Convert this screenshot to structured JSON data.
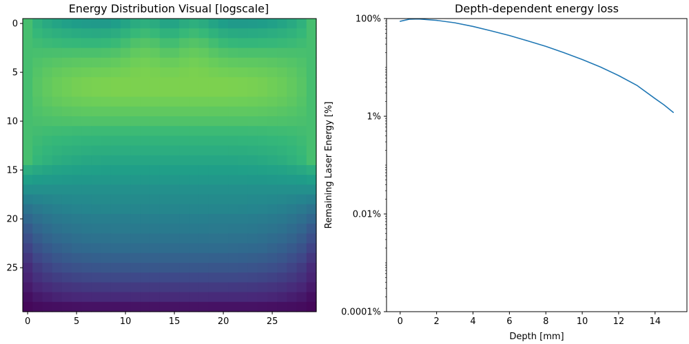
{
  "chart_data": [
    {
      "type": "heatmap",
      "title": "Energy Distribution Visual [logscale]",
      "colormap": "viridis",
      "rows": 30,
      "cols": 30,
      "xlim": [
        -0.5,
        29.5
      ],
      "ylim": [
        29.5,
        -0.5
      ],
      "xticks": [
        0,
        5,
        10,
        15,
        20,
        25
      ],
      "yticks": [
        0,
        5,
        10,
        15,
        20,
        25
      ],
      "value_range": [
        0,
        1
      ],
      "model": {
        "center_rows": [
          0.53,
          0.6,
          0.66,
          0.71,
          0.75,
          0.78,
          0.8,
          0.8,
          0.78,
          0.75,
          0.72,
          0.68,
          0.65,
          0.62,
          0.59,
          0.56,
          0.53,
          0.5,
          0.48,
          0.46,
          0.43,
          0.41,
          0.38,
          0.35,
          0.31,
          0.27,
          0.22,
          0.17,
          0.12,
          0.05
        ],
        "edge_rows": [
          0.7,
          0.7,
          0.7,
          0.7,
          0.7,
          0.7,
          0.7,
          0.7,
          0.7,
          0.7,
          0.7,
          0.7,
          0.7,
          0.7,
          0.7,
          0.62,
          0.56,
          0.5,
          0.44,
          0.38,
          0.33,
          0.28,
          0.24,
          0.2,
          0.16,
          0.12,
          0.1,
          0.07,
          0.04,
          0.02
        ],
        "column_profile": [
          0.0,
          0.35,
          0.55,
          0.7,
          0.8,
          0.88,
          0.93,
          0.96,
          0.98,
          0.99,
          0.99,
          1.0,
          1.0,
          1.0,
          1.0,
          1.0,
          1.0,
          1.0,
          1.0,
          0.99,
          0.99,
          0.98,
          0.96,
          0.93,
          0.88,
          0.8,
          0.7,
          0.55,
          0.35,
          0.0
        ],
        "top_bright_cols": [
          12,
          17
        ]
      }
    },
    {
      "type": "line",
      "title": "Depth-dependent energy loss",
      "xlabel": "Depth [mm]",
      "ylabel": "Remaining Laser Energy [%]",
      "xlim": [
        -0.75,
        15.75
      ],
      "ylim": [
        0.0001,
        100
      ],
      "yscale": "log",
      "xticks": [
        0,
        2,
        4,
        6,
        8,
        10,
        12,
        14
      ],
      "yticks": [
        100,
        1,
        0.01,
        0.0001
      ],
      "ytick_labels": [
        "100%",
        "1%",
        "0.01%",
        "0.0001%"
      ],
      "color": "#1f77b4",
      "x": [
        0,
        0.5,
        1,
        2,
        3,
        4,
        5,
        6,
        7,
        8,
        9,
        10,
        11,
        12,
        13,
        14,
        14.5,
        15
      ],
      "y": [
        88,
        97,
        98,
        92,
        82,
        69,
        56,
        45,
        35,
        27,
        20,
        14.5,
        10.2,
        6.8,
        4.3,
        2.3,
        1.7,
        1.2
      ]
    }
  ]
}
